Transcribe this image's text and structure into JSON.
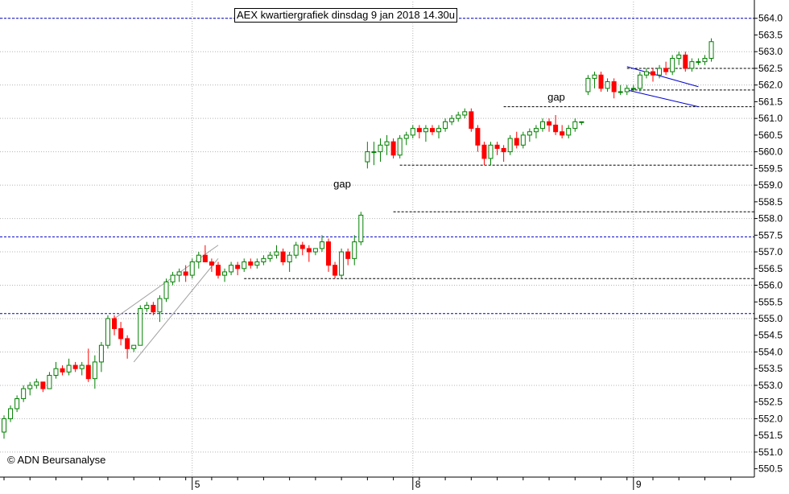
{
  "chart_data": {
    "type": "candlestick",
    "title": "AEX kwartiergrafiek dinsdag 9 jan 2018 14.30u",
    "copyright": "© ADN Beursanalyse",
    "ylim": [
      550.25,
      564.5
    ],
    "y_ticks": [
      "550.5",
      "551.0",
      "551.5",
      "552.0",
      "552.5",
      "553.0",
      "553.5",
      "554.0",
      "554.5",
      "555.0",
      "555.5",
      "556.0",
      "556.5",
      "557.0",
      "557.5",
      "558.0",
      "558.5",
      "559.0",
      "559.5",
      "560.0",
      "560.5",
      "561.0",
      "561.5",
      "562.0",
      "562.5",
      "563.0",
      "563.5",
      "564.0"
    ],
    "x_ticks": [
      {
        "label": "5",
        "bar": 29
      },
      {
        "label": "8",
        "bar": 63
      },
      {
        "label": "9",
        "bar": 97
      }
    ],
    "grid": true,
    "colors": {
      "up": "#008000",
      "down": "#ff0000",
      "blue_line": "#0000cc",
      "black_line": "#000000",
      "grid": "#b4b4b4"
    },
    "candles": [
      [
        551.6,
        552.1,
        551.4,
        552.0
      ],
      [
        552.0,
        552.4,
        551.9,
        552.3
      ],
      [
        552.3,
        552.7,
        552.2,
        552.6
      ],
      [
        552.6,
        553.0,
        552.5,
        552.9
      ],
      [
        552.9,
        553.1,
        552.7,
        553.0
      ],
      [
        553.0,
        553.2,
        552.9,
        553.1
      ],
      [
        553.1,
        553.1,
        552.8,
        552.9
      ],
      [
        552.9,
        553.4,
        552.9,
        553.3
      ],
      [
        553.3,
        553.7,
        553.2,
        553.5
      ],
      [
        553.5,
        553.6,
        553.3,
        553.4
      ],
      [
        553.4,
        553.8,
        553.3,
        553.6
      ],
      [
        553.6,
        553.7,
        553.4,
        553.5
      ],
      [
        553.5,
        553.7,
        553.3,
        553.6
      ],
      [
        553.6,
        554.1,
        553.1,
        553.2
      ],
      [
        553.2,
        553.9,
        552.9,
        553.7
      ],
      [
        553.7,
        554.3,
        553.4,
        554.2
      ],
      [
        554.2,
        555.1,
        554.1,
        555.0
      ],
      [
        555.0,
        555.1,
        554.5,
        554.7
      ],
      [
        554.7,
        554.9,
        554.2,
        554.4
      ],
      [
        554.4,
        554.5,
        553.8,
        554.1
      ],
      [
        554.1,
        554.2,
        554.0,
        554.2
      ],
      [
        554.2,
        555.4,
        554.2,
        555.3
      ],
      [
        555.3,
        555.5,
        555.2,
        555.4
      ],
      [
        555.4,
        555.5,
        555.1,
        555.2
      ],
      [
        555.2,
        555.7,
        554.9,
        555.6
      ],
      [
        555.6,
        556.2,
        555.5,
        556.1
      ],
      [
        556.1,
        556.4,
        556.0,
        556.3
      ],
      [
        556.3,
        556.5,
        556.1,
        556.4
      ],
      [
        556.4,
        556.6,
        556.1,
        556.3
      ],
      [
        556.3,
        556.8,
        556.2,
        556.7
      ],
      [
        556.7,
        557.0,
        556.5,
        556.9
      ],
      [
        556.9,
        557.2,
        556.7,
        556.7
      ],
      [
        556.7,
        556.8,
        556.4,
        556.6
      ],
      [
        556.6,
        556.7,
        556.2,
        556.3
      ],
      [
        556.3,
        556.5,
        556.1,
        556.4
      ],
      [
        556.4,
        556.7,
        556.3,
        556.6
      ],
      [
        556.6,
        556.7,
        556.3,
        556.5
      ],
      [
        556.5,
        556.8,
        556.4,
        556.7
      ],
      [
        556.7,
        556.8,
        556.5,
        556.6
      ],
      [
        556.6,
        556.8,
        556.5,
        556.7
      ],
      [
        556.7,
        556.9,
        556.6,
        556.8
      ],
      [
        556.8,
        557.0,
        556.7,
        556.9
      ],
      [
        556.9,
        557.2,
        556.8,
        557.0
      ],
      [
        557.0,
        557.1,
        556.6,
        556.7
      ],
      [
        556.7,
        557.0,
        556.4,
        556.9
      ],
      [
        556.9,
        557.3,
        556.8,
        557.2
      ],
      [
        557.2,
        557.3,
        556.9,
        557.1
      ],
      [
        557.1,
        557.2,
        556.7,
        557.0
      ],
      [
        557.0,
        557.1,
        556.9,
        557.1
      ],
      [
        557.1,
        557.5,
        557.0,
        557.3
      ],
      [
        557.3,
        557.4,
        556.4,
        556.6
      ],
      [
        556.6,
        556.7,
        556.2,
        556.3
      ],
      [
        556.3,
        557.1,
        556.2,
        557.0
      ],
      [
        557.0,
        557.1,
        556.6,
        556.8
      ],
      [
        556.8,
        557.5,
        556.6,
        557.3
      ],
      [
        557.3,
        558.2,
        557.2,
        558.1
      ],
      [
        559.7,
        560.3,
        559.5,
        560.0
      ],
      [
        560.0,
        560.3,
        559.6,
        560.0
      ],
      [
        560.0,
        560.4,
        559.7,
        560.2
      ],
      [
        560.2,
        560.5,
        559.9,
        560.3
      ],
      [
        560.3,
        560.4,
        559.8,
        559.9
      ],
      [
        559.9,
        560.5,
        559.8,
        560.4
      ],
      [
        560.4,
        560.6,
        560.2,
        560.5
      ],
      [
        560.5,
        560.8,
        560.4,
        560.7
      ],
      [
        560.7,
        560.8,
        560.4,
        560.6
      ],
      [
        560.6,
        560.8,
        560.3,
        560.7
      ],
      [
        560.7,
        560.8,
        560.5,
        560.6
      ],
      [
        560.6,
        560.8,
        560.4,
        560.7
      ],
      [
        560.7,
        561.0,
        560.6,
        560.9
      ],
      [
        560.9,
        561.1,
        560.8,
        561.0
      ],
      [
        561.0,
        561.2,
        560.9,
        561.1
      ],
      [
        561.1,
        561.3,
        561.0,
        561.2
      ],
      [
        561.2,
        561.3,
        560.6,
        560.7
      ],
      [
        560.7,
        560.8,
        560.0,
        560.2
      ],
      [
        560.2,
        560.3,
        559.6,
        559.8
      ],
      [
        559.8,
        560.3,
        559.6,
        560.2
      ],
      [
        560.2,
        560.3,
        559.9,
        560.1
      ],
      [
        560.1,
        560.2,
        559.7,
        560.0
      ],
      [
        560.0,
        560.5,
        559.9,
        560.4
      ],
      [
        560.4,
        560.6,
        560.1,
        560.2
      ],
      [
        560.2,
        560.6,
        560.1,
        560.5
      ],
      [
        560.5,
        560.7,
        560.3,
        560.6
      ],
      [
        560.6,
        560.8,
        560.4,
        560.7
      ],
      [
        560.7,
        561.0,
        560.6,
        560.9
      ],
      [
        560.9,
        561.0,
        560.6,
        560.8
      ],
      [
        560.8,
        561.1,
        560.5,
        560.6
      ],
      [
        560.6,
        560.8,
        560.4,
        560.5
      ],
      [
        560.5,
        560.8,
        560.4,
        560.7
      ],
      [
        560.7,
        561.0,
        560.6,
        560.9
      ],
      [
        560.9,
        560.9,
        560.8,
        560.9
      ],
      [
        561.8,
        562.3,
        561.7,
        562.2
      ],
      [
        562.2,
        562.4,
        561.9,
        562.3
      ],
      [
        562.3,
        562.4,
        561.8,
        561.9
      ],
      [
        561.9,
        562.2,
        561.8,
        562.1
      ],
      [
        562.1,
        562.2,
        561.6,
        561.8
      ],
      [
        561.8,
        562.0,
        561.7,
        561.8
      ],
      [
        561.8,
        562.0,
        561.7,
        561.9
      ],
      [
        561.9,
        562.0,
        561.8,
        561.9
      ],
      [
        561.9,
        562.4,
        561.8,
        562.3
      ],
      [
        562.3,
        562.5,
        562.2,
        562.4
      ],
      [
        562.4,
        562.5,
        562.1,
        562.3
      ],
      [
        562.3,
        562.6,
        562.2,
        562.5
      ],
      [
        562.5,
        562.7,
        562.3,
        562.4
      ],
      [
        562.4,
        562.9,
        562.3,
        562.8
      ],
      [
        562.8,
        563.0,
        562.6,
        562.9
      ],
      [
        562.9,
        563.0,
        562.4,
        562.5
      ],
      [
        562.5,
        562.8,
        562.4,
        562.7
      ],
      [
        562.7,
        562.8,
        562.6,
        562.7
      ],
      [
        562.7,
        562.9,
        562.6,
        562.8
      ],
      [
        562.8,
        563.4,
        562.7,
        563.3
      ]
    ],
    "h_lines": [
      {
        "y": 564.0,
        "color": "blue"
      },
      {
        "y": 562.5,
        "color": "black",
        "from_bar": 96
      },
      {
        "y": 561.85,
        "color": "black",
        "from_bar": 96
      },
      {
        "y": 561.35,
        "color": "black",
        "from_bar": 77
      },
      {
        "y": 559.6,
        "color": "black",
        "from_bar": 61
      },
      {
        "y": 558.2,
        "color": "black",
        "from_bar": 60
      },
      {
        "y": 557.45,
        "color": "blue"
      },
      {
        "y": 556.2,
        "color": "black",
        "from_bar": 37
      },
      {
        "y": 555.15,
        "color": "blue"
      }
    ],
    "trend_lines": [
      {
        "from": [
          17,
          555.0
        ],
        "to": [
          33,
          557.2
        ],
        "color": "grey"
      },
      {
        "from": [
          20,
          553.7
        ],
        "to": [
          33,
          556.8
        ],
        "color": "grey"
      },
      {
        "from": [
          96,
          562.55
        ],
        "to": [
          107,
          561.95
        ],
        "color": "blue"
      },
      {
        "from": [
          96,
          561.85
        ],
        "to": [
          107,
          561.35
        ],
        "color": "blue"
      }
    ],
    "annotations": [
      {
        "text": "gap",
        "bar": 52,
        "y": 559.0
      },
      {
        "text": "gap",
        "bar": 85,
        "y": 561.6
      }
    ]
  }
}
